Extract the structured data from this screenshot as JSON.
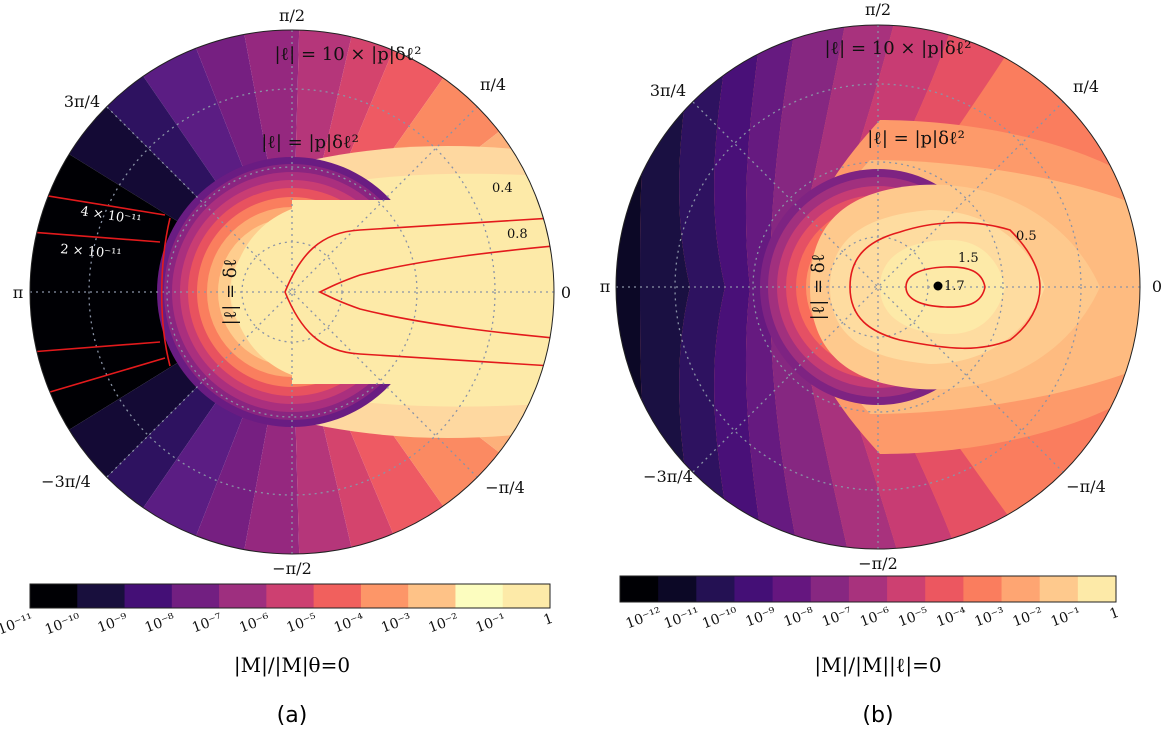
{
  "chart_data": [
    {
      "type": "contour",
      "coordinates": "polar",
      "panel_label": "(a)",
      "angle_labels": [
        "π/2",
        "π/4",
        "0",
        "−π/4",
        "−π/2",
        "−3π/4",
        "π",
        "3π/4"
      ],
      "radial_annotations": [
        "|ℓ| = δℓ",
        "|ℓ| = |p|δℓ²",
        "|ℓ| = 10 × |p|δℓ²"
      ],
      "contour_line_labels": [
        {
          "text": "0.4",
          "level": 0.4
        },
        {
          "text": "0.8",
          "level": 0.8
        },
        {
          "text": "4 × 10⁻¹¹",
          "level": 4e-11
        },
        {
          "text": "2 × 10⁻¹¹",
          "level": 2e-11
        }
      ],
      "colorbar": {
        "label": "|M|/|M|θ=0",
        "scale": "log",
        "tick_labels": [
          "10⁻¹¹",
          "10⁻¹⁰",
          "10⁻⁹",
          "10⁻⁸",
          "10⁻⁷",
          "10⁻⁶",
          "10⁻⁵",
          "10⁻⁴",
          "10⁻³",
          "10⁻²",
          "10⁻¹",
          "1"
        ],
        "colors": [
          "#000004",
          "#180f3d",
          "#440f76",
          "#721f81",
          "#9e2f7f",
          "#cd4071",
          "#f1605d",
          "#fd9668",
          "#fec287",
          "#fcfdbf",
          "#fdeaa8"
        ]
      },
      "grid": "dotted"
    },
    {
      "type": "contour",
      "coordinates": "polar",
      "panel_label": "(b)",
      "angle_labels": [
        "π/2",
        "π/4",
        "0",
        "−π/4",
        "−π/2",
        "−3π/4",
        "π",
        "3π/4"
      ],
      "radial_annotations": [
        "|ℓ| = δℓ",
        "|ℓ| = |p|δℓ²",
        "|ℓ| = 10 × |p|δℓ²"
      ],
      "contour_line_labels": [
        {
          "text": "0.5",
          "level": 0.5
        },
        {
          "text": "1.5",
          "level": 1.5
        },
        {
          "text": "1.7",
          "level": 1.7
        }
      ],
      "colorbar": {
        "label": "|M|/|M||ℓ|=0",
        "scale": "log",
        "tick_labels": [
          "10⁻¹²",
          "10⁻¹¹",
          "10⁻¹⁰",
          "10⁻⁹",
          "10⁻⁸",
          "10⁻⁷",
          "10⁻⁶",
          "10⁻⁵",
          "10⁻⁴",
          "10⁻³",
          "10⁻²",
          "10⁻¹",
          "1"
        ],
        "colors": [
          "#000004",
          "#0c0826",
          "#241153",
          "#440f76",
          "#65167f",
          "#872781",
          "#a8327d",
          "#cd4071",
          "#ec5760",
          "#fa7d5e",
          "#fea572",
          "#fec98d",
          "#fdeaa8"
        ]
      },
      "grid": "dotted"
    }
  ]
}
